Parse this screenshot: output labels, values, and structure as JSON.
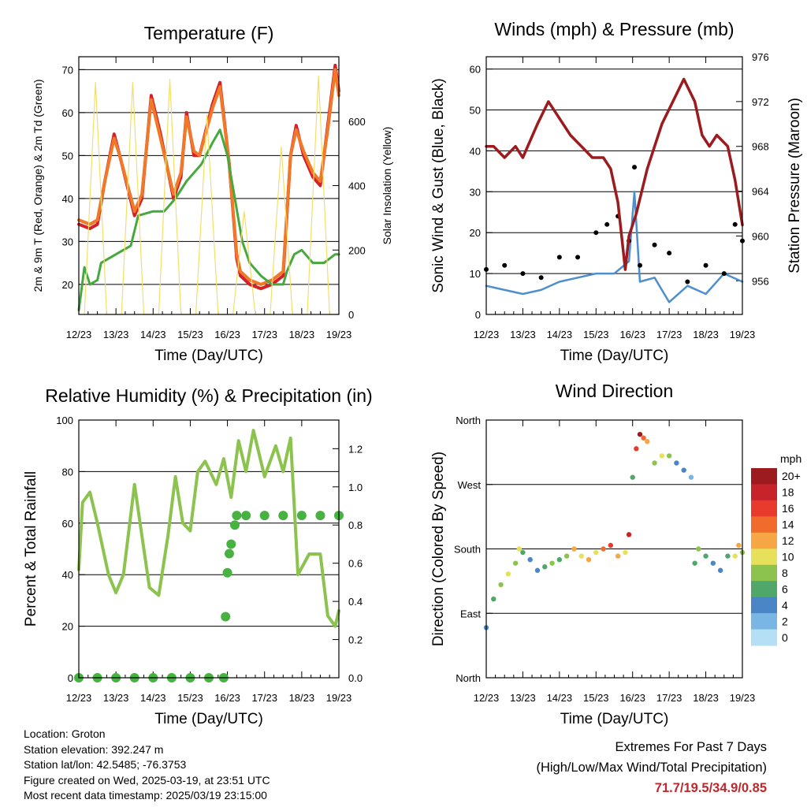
{
  "time_axis": {
    "xlabel": "Time (Day/UTC)",
    "ticks": [
      "12/23",
      "13/23",
      "14/23",
      "15/23",
      "16/23",
      "17/23",
      "18/23",
      "19/23"
    ]
  },
  "footer": {
    "location": "Location: Groton",
    "elevation": "Station elevation: 392.247 m",
    "latlon": "Station lat/lon: 42.5485; -76.3753",
    "created": "Figure created on Wed, 2025-03-19, at 23:51 UTC",
    "recent": "Most recent data timestamp: 2025/03/19 23:15:00",
    "extremes_title": "Extremes For Past 7 Days",
    "extremes_desc": "(High/Low/Max Wind/Total Precipitation)",
    "extremes_values": "71.7/19.5/34.9/0.85"
  },
  "colors": {
    "temp_2m": "#d3212a",
    "temp_9m": "#f07828",
    "dewpoint": "#47a83e",
    "solar": "#f4de6a",
    "wind": "#4d8fce",
    "gust": "#000000",
    "pressure": "#9b1b1e",
    "rh": "#8cc34f",
    "precip": "#47b241",
    "extremes": "#c0272d"
  },
  "chart_data": [
    {
      "id": "temperature",
      "type": "line",
      "title": "Temperature (F)",
      "xlabel": "Time (Day/UTC)",
      "ylabel": "2m & 9m T (Red, Orange) & 2m Td (Green)",
      "ylabel_right": "Solar Insolation (Yellow)",
      "x_ticks": [
        "12/23",
        "13/23",
        "14/23",
        "15/23",
        "16/23",
        "17/23",
        "18/23",
        "19/23"
      ],
      "xlim": [
        0,
        7
      ],
      "ylim": [
        13,
        73
      ],
      "y_ticks": [
        20,
        30,
        40,
        50,
        60,
        70
      ],
      "ylim_right": [
        0,
        800
      ],
      "y_ticks_right": [
        0,
        200,
        400,
        600
      ],
      "grid": "horizontal",
      "series": [
        {
          "name": "2m T",
          "axis": "left",
          "color": "#d3212a",
          "x": [
            0,
            0.3,
            0.5,
            0.7,
            0.95,
            1.1,
            1.5,
            1.7,
            1.95,
            2.2,
            2.55,
            2.75,
            2.9,
            3.1,
            3.25,
            3.6,
            3.8,
            4.05,
            4.25,
            4.35,
            4.6,
            4.9,
            5.2,
            5.5,
            5.7,
            5.85,
            6.05,
            6.3,
            6.5,
            6.7,
            6.9,
            7
          ],
          "y": [
            34,
            33,
            34,
            44,
            55,
            50,
            36,
            40,
            64,
            55,
            40,
            45,
            60,
            50,
            50,
            62,
            67,
            48,
            26,
            22,
            20,
            19,
            20,
            22,
            50,
            57,
            50,
            45,
            43,
            57,
            71,
            65
          ]
        },
        {
          "name": "9m T",
          "axis": "left",
          "color": "#f07828",
          "x": [
            0,
            0.3,
            0.5,
            0.7,
            0.95,
            1.1,
            1.5,
            1.7,
            1.95,
            2.2,
            2.55,
            2.75,
            2.9,
            3.1,
            3.25,
            3.6,
            3.8,
            4.05,
            4.25,
            4.35,
            4.6,
            4.9,
            5.2,
            5.5,
            5.7,
            5.85,
            6.05,
            6.3,
            6.5,
            6.7,
            6.9,
            7
          ],
          "y": [
            35,
            34,
            35,
            44,
            54,
            50,
            37,
            41,
            63,
            54,
            41,
            46,
            59,
            51,
            50,
            61,
            66,
            48,
            27,
            23,
            21,
            20,
            21,
            23,
            50,
            56,
            51,
            46,
            44,
            56,
            70,
            64
          ]
        },
        {
          "name": "2m Td",
          "axis": "left",
          "color": "#47a83e",
          "x": [
            0,
            0.15,
            0.3,
            0.5,
            0.6,
            1.0,
            1.4,
            1.6,
            2.0,
            2.3,
            2.6,
            2.9,
            3.3,
            3.6,
            3.8,
            4.0,
            4.2,
            4.4,
            4.6,
            4.9,
            5.2,
            5.5,
            5.6,
            5.8,
            6.0,
            6.3,
            6.6,
            6.9,
            7
          ],
          "y": [
            14,
            24,
            20,
            21,
            25,
            27,
            29,
            36,
            37,
            37,
            40,
            44,
            48,
            53,
            56,
            50,
            40,
            30,
            25,
            22,
            20,
            20,
            23,
            27,
            28,
            25,
            25,
            27,
            27
          ]
        },
        {
          "name": "Solar Insolation",
          "axis": "right",
          "color": "#f4de6a",
          "x": [
            0.15,
            0.45,
            0.75,
            1.15,
            1.45,
            1.75,
            2.15,
            2.45,
            2.75,
            3.15,
            3.45,
            3.75,
            4.15,
            4.45,
            4.75,
            5.15,
            5.45,
            5.75,
            6.15,
            6.45,
            6.75,
            7
          ],
          "y": [
            0,
            720,
            0,
            0,
            720,
            0,
            0,
            730,
            0,
            0,
            620,
            0,
            0,
            320,
            0,
            0,
            520,
            0,
            0,
            740,
            0,
            0
          ]
        }
      ]
    },
    {
      "id": "winds",
      "type": "scatter",
      "title": "Winds (mph) & Pressure (mb)",
      "xlabel": "Time (Day/UTC)",
      "ylabel": "Sonic Wind & Gust (Blue, Black)",
      "ylabel_right": "Station Pressure (Maroon)",
      "x_ticks": [
        "12/23",
        "13/23",
        "14/23",
        "15/23",
        "16/23",
        "17/23",
        "18/23",
        "19/23"
      ],
      "xlim": [
        0,
        7
      ],
      "ylim": [
        0,
        63
      ],
      "y_ticks": [
        0,
        10,
        20,
        30,
        40,
        50,
        60
      ],
      "ylim_right": [
        953,
        976
      ],
      "y_ticks_right": [
        956,
        960,
        964,
        968,
        972,
        976
      ],
      "grid": "horizontal",
      "series": [
        {
          "name": "Wind",
          "axis": "left",
          "color": "#4d8fce",
          "style": "line",
          "x": [
            0,
            0.5,
            1.0,
            1.5,
            2.0,
            2.5,
            3.0,
            3.5,
            3.9,
            4.05,
            4.2,
            4.6,
            5.0,
            5.5,
            6.0,
            6.5,
            7
          ],
          "y": [
            7,
            6,
            5,
            6,
            8,
            9,
            10,
            10,
            13,
            30,
            8,
            9,
            3,
            7,
            5,
            10,
            8
          ]
        },
        {
          "name": "Gust",
          "axis": "left",
          "color": "#000000",
          "style": "points",
          "x": [
            0,
            0.5,
            1.0,
            1.5,
            2.0,
            2.5,
            3.0,
            3.3,
            3.6,
            3.9,
            4.05,
            4.2,
            4.6,
            5.0,
            5.5,
            6.0,
            6.5,
            6.8,
            7
          ],
          "y": [
            11,
            12,
            10,
            9,
            14,
            14,
            20,
            22,
            24,
            18,
            36,
            12,
            17,
            15,
            8,
            12,
            10,
            22,
            18
          ]
        },
        {
          "name": "Pressure",
          "axis": "right",
          "color": "#9b1b1e",
          "style": "line",
          "x": [
            0,
            0.2,
            0.5,
            0.8,
            1.0,
            1.4,
            1.7,
            1.9,
            2.3,
            2.6,
            2.9,
            3.2,
            3.4,
            3.6,
            3.8,
            3.9,
            4.1,
            4.4,
            4.8,
            5.1,
            5.4,
            5.7,
            5.9,
            6.1,
            6.3,
            6.6,
            6.8,
            7
          ],
          "y": [
            968,
            968,
            967,
            968,
            967,
            970,
            972,
            971,
            969,
            968,
            967,
            967,
            966,
            963,
            957,
            960,
            962,
            966,
            970,
            972,
            974,
            972,
            969,
            968,
            969,
            968,
            965,
            961
          ]
        }
      ]
    },
    {
      "id": "humidity",
      "type": "line",
      "title": "Relative Humidity (%) & Precipitation (in)",
      "xlabel": "Time (Day/UTC)",
      "ylabel": "Percent & Total Rainfall",
      "x_ticks": [
        "12/23",
        "13/23",
        "14/23",
        "15/23",
        "16/23",
        "17/23",
        "18/23",
        "19/23"
      ],
      "xlim": [
        0,
        7
      ],
      "ylim": [
        0,
        100
      ],
      "y_ticks": [
        0,
        20,
        40,
        60,
        80,
        100
      ],
      "ylim_right": [
        0,
        1.35
      ],
      "y_ticks_right": [
        "0.0",
        "0.2",
        "0.4",
        "0.6",
        "0.8",
        "1.0",
        "1.2"
      ],
      "grid": "horizontal",
      "series": [
        {
          "name": "Relative Humidity",
          "axis": "left",
          "color": "#8cc34f",
          "style": "line",
          "x": [
            0,
            0.1,
            0.3,
            0.5,
            0.8,
            1.0,
            1.2,
            1.5,
            1.7,
            1.9,
            2.15,
            2.4,
            2.6,
            2.8,
            3.0,
            3.2,
            3.4,
            3.7,
            3.9,
            4.1,
            4.3,
            4.5,
            4.7,
            5.0,
            5.3,
            5.5,
            5.7,
            5.9,
            6.2,
            6.5,
            6.7,
            6.9,
            7
          ],
          "y": [
            42,
            68,
            72,
            60,
            40,
            33,
            40,
            75,
            55,
            35,
            32,
            55,
            78,
            60,
            57,
            80,
            84,
            75,
            85,
            70,
            92,
            80,
            96,
            78,
            90,
            80,
            93,
            40,
            48,
            48,
            24,
            20,
            26
          ]
        },
        {
          "name": "Precipitation",
          "axis": "right",
          "color": "#47b241",
          "style": "points",
          "x": [
            0,
            0.5,
            1.0,
            1.5,
            2.0,
            2.5,
            3.0,
            3.5,
            3.9,
            3.95,
            4.0,
            4.05,
            4.1,
            4.2,
            4.25,
            4.5,
            5.0,
            5.5,
            6.0,
            6.5,
            7
          ],
          "y": [
            0,
            0,
            0,
            0,
            0,
            0,
            0,
            0,
            0.0,
            0.32,
            0.55,
            0.65,
            0.7,
            0.8,
            0.85,
            0.85,
            0.85,
            0.85,
            0.85,
            0.85,
            0.85
          ]
        }
      ]
    },
    {
      "id": "wind_direction",
      "type": "scatter",
      "title": "Wind Direction",
      "xlabel": "Time (Day/UTC)",
      "ylabel": "Direction (Colored By Speed)",
      "x_ticks": [
        "12/23",
        "13/23",
        "14/23",
        "15/23",
        "16/23",
        "17/23",
        "18/23",
        "19/23"
      ],
      "xlim": [
        0,
        7
      ],
      "ylim": [
        0,
        360
      ],
      "y_ticks": [
        {
          "value": 0,
          "label": "North"
        },
        {
          "value": 90,
          "label": "East"
        },
        {
          "value": 180,
          "label": "South"
        },
        {
          "value": 270,
          "label": "West"
        },
        {
          "value": 360,
          "label": "North"
        }
      ],
      "grid": "horizontal",
      "colorbar": {
        "label": "mph",
        "levels": [
          "20+",
          "18",
          "16",
          "14",
          "12",
          "10",
          "8",
          "6",
          "4",
          "2",
          "0"
        ],
        "colors": [
          "#9b1b1e",
          "#c7232a",
          "#e83b2e",
          "#f06b2c",
          "#f7a645",
          "#e6e05a",
          "#8cc34f",
          "#4fa86a",
          "#4a86c6",
          "#7ab6e4",
          "#b5dff5"
        ]
      },
      "series": [
        {
          "name": "Direction",
          "color_by": "speed",
          "x": [
            0.0,
            0.2,
            0.4,
            0.6,
            0.8,
            0.9,
            1.0,
            1.2,
            1.4,
            1.6,
            1.8,
            2.0,
            2.2,
            2.4,
            2.6,
            2.8,
            3.0,
            3.2,
            3.4,
            3.6,
            3.8,
            3.9,
            4.0,
            4.1,
            4.2,
            4.3,
            4.4,
            4.6,
            4.8,
            5.0,
            5.2,
            5.4,
            5.6,
            5.7,
            5.8,
            6.0,
            6.2,
            6.4,
            6.6,
            6.8,
            6.9,
            7.0
          ],
          "y": [
            70,
            110,
            130,
            145,
            160,
            180,
            175,
            165,
            150,
            155,
            160,
            165,
            170,
            180,
            170,
            165,
            175,
            180,
            185,
            170,
            175,
            200,
            280,
            320,
            340,
            335,
            330,
            300,
            310,
            310,
            300,
            290,
            280,
            160,
            180,
            170,
            160,
            150,
            170,
            170,
            185,
            175
          ],
          "speed": [
            4,
            6,
            8,
            10,
            8,
            10,
            6,
            4,
            4,
            6,
            8,
            6,
            8,
            12,
            10,
            12,
            10,
            14,
            16,
            12,
            10,
            18,
            6,
            16,
            20,
            14,
            12,
            8,
            10,
            8,
            4,
            4,
            2,
            6,
            8,
            6,
            4,
            4,
            6,
            10,
            12,
            8
          ]
        }
      ]
    }
  ]
}
